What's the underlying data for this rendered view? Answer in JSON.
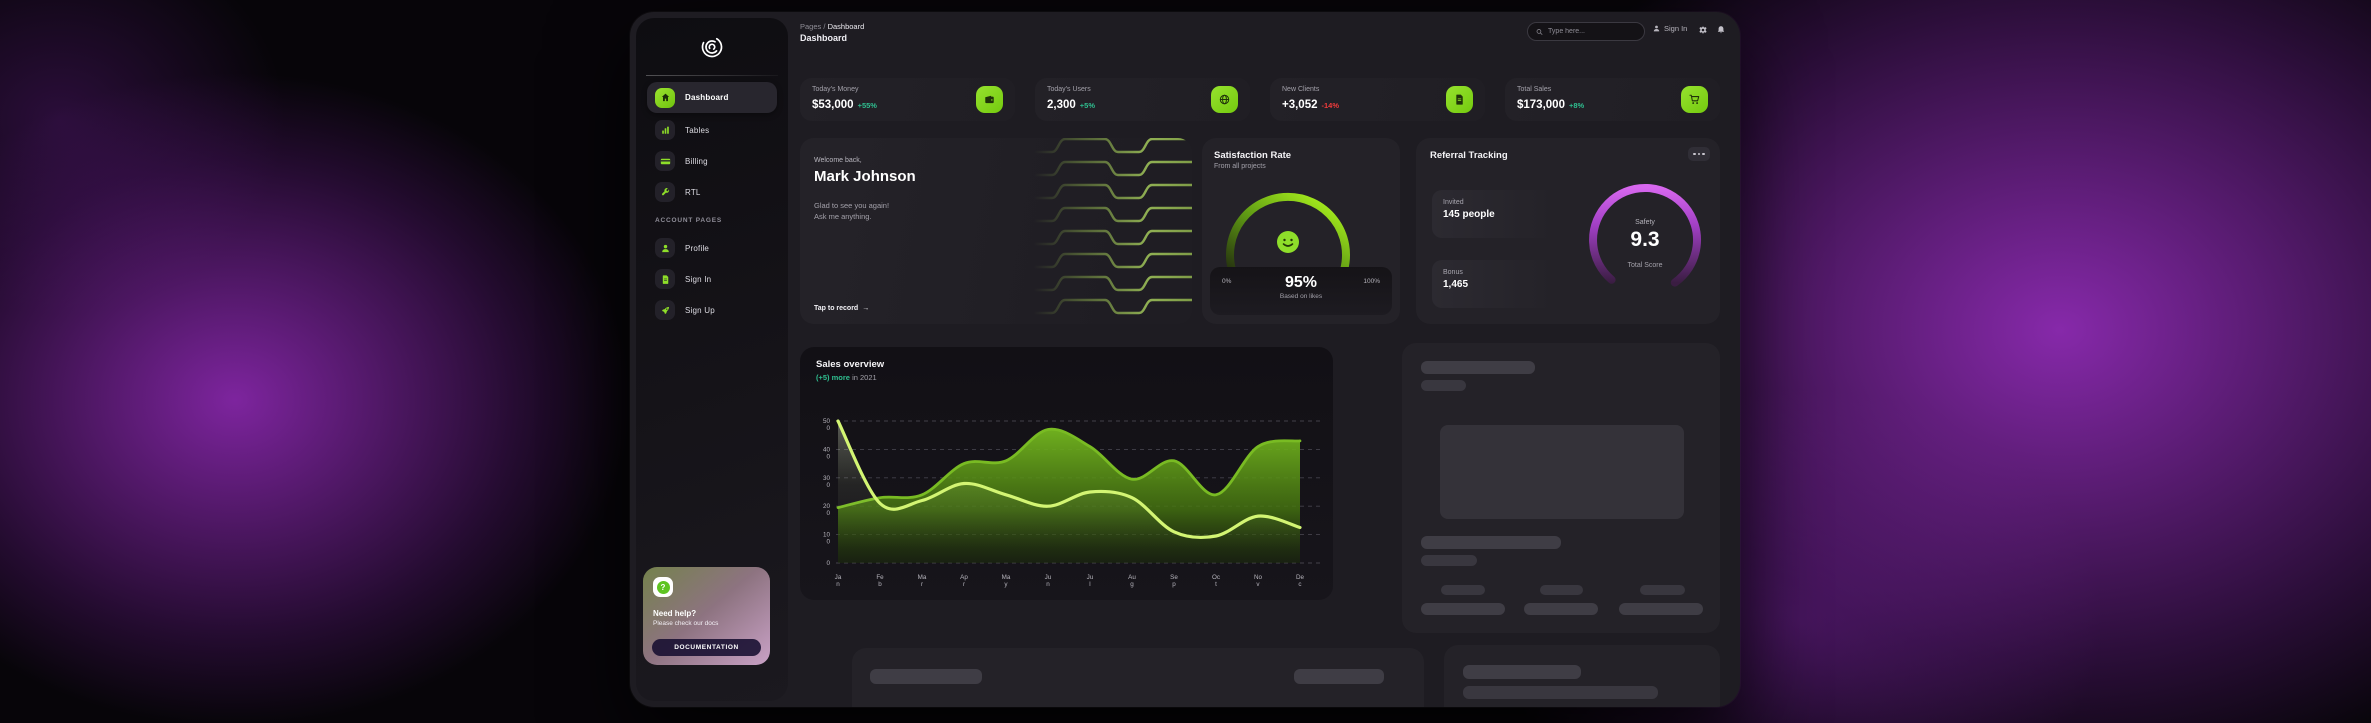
{
  "header": {
    "breadcrumb_root": "Pages",
    "breadcrumb_separator": "/",
    "breadcrumb_current": "Dashboard",
    "page_title": "Dashboard",
    "search_placeholder": "Type here...",
    "sign_in_label": "Sign In"
  },
  "sidebar": {
    "nav": [
      {
        "label": "Dashboard",
        "icon": "home-icon",
        "active": true
      },
      {
        "label": "Tables",
        "icon": "bar-chart-icon",
        "active": false
      },
      {
        "label": "Billing",
        "icon": "credit-card-icon",
        "active": false
      },
      {
        "label": "RTL",
        "icon": "wrench-icon",
        "active": false
      }
    ],
    "section_label": "ACCOUNT PAGES",
    "account_nav": [
      {
        "label": "Profile",
        "icon": "person-icon"
      },
      {
        "label": "Sign In",
        "icon": "document-icon"
      },
      {
        "label": "Sign Up",
        "icon": "rocket-icon"
      }
    ],
    "help_card": {
      "title": "Need help?",
      "subtitle": "Please check our docs",
      "button_label": "DOCUMENTATION",
      "icon": "question-icon"
    }
  },
  "stats": [
    {
      "label": "Today's Money",
      "value": "$53,000",
      "delta": "+55%",
      "direction": "up",
      "icon": "wallet-icon"
    },
    {
      "label": "Today's Users",
      "value": "2,300",
      "delta": "+5%",
      "direction": "up",
      "icon": "globe-icon"
    },
    {
      "label": "New Clients",
      "value": "+3,052",
      "delta": "-14%",
      "direction": "down",
      "icon": "document-icon"
    },
    {
      "label": "Total Sales",
      "value": "$173,000",
      "delta": "+8%",
      "direction": "up",
      "icon": "cart-icon"
    }
  ],
  "welcome": {
    "greeting": "Welcome back,",
    "name": "Mark Johnson",
    "line1": "Glad to see you again!",
    "line2": "Ask me anything.",
    "cta": "Tap to record",
    "cta_icon": "arrow-right-icon"
  },
  "satisfaction": {
    "title": "Satisfaction Rate",
    "subtitle": "From all projects",
    "min": "0%",
    "max": "100%",
    "value": "95%",
    "caption": "Based on likes",
    "icon": "smiley-icon"
  },
  "referral": {
    "title": "Referral Tracking",
    "invited_label": "Invited",
    "invited_value": "145 people",
    "bonus_label": "Bonus",
    "bonus_value": "1,465",
    "score_label": "Safety",
    "score_value": "9.3",
    "score_caption": "Total Score"
  },
  "chart_data": {
    "type": "area",
    "title": "Sales overview",
    "subtitle_highlight": "(+5) more",
    "subtitle_rest": " in 2021",
    "x": [
      "Jan",
      "Feb",
      "Mar",
      "Apr",
      "May",
      "Jun",
      "Jul",
      "Aug",
      "Sep",
      "Oct",
      "Nov",
      "Dec"
    ],
    "yticks": [
      0,
      100,
      200,
      300,
      400,
      500
    ],
    "ylim": [
      0,
      500
    ],
    "grid": "dashed-horizontal",
    "legend": "none",
    "series": [
      {
        "name": "dark_green_series",
        "color": "#79bb23",
        "values": [
          195,
          230,
          240,
          350,
          360,
          470,
          410,
          295,
          360,
          240,
          410,
          430
        ]
      },
      {
        "name": "light_green_series",
        "color": "#d3f573",
        "values": [
          500,
          210,
          220,
          280,
          240,
          200,
          250,
          230,
          110,
          95,
          165,
          125
        ]
      }
    ]
  },
  "colors": {
    "accent_lime": "#82d616",
    "positive": "#2fbf90",
    "negative": "#f23b3b",
    "gauge_green": "#9fe51c",
    "gauge_purple": "#cf5ce8",
    "card_background": "#242228",
    "page_glow_purple": "#8e28b4"
  }
}
